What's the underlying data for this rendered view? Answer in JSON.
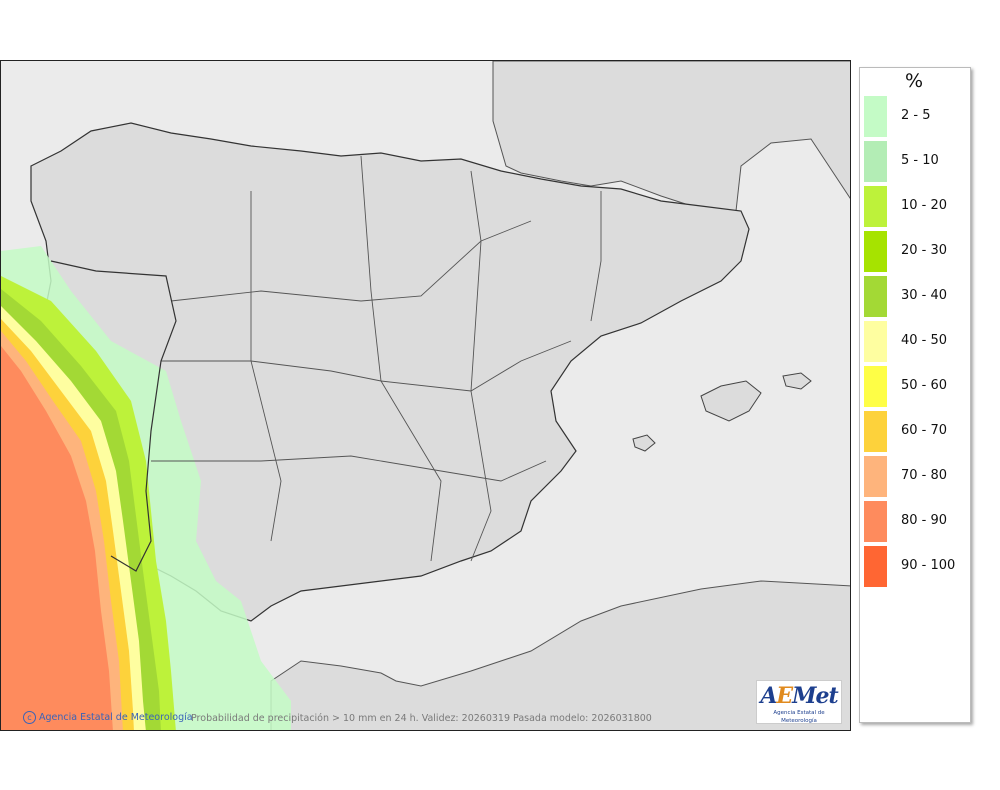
{
  "map": {
    "credit": "Agencia Estatal de Meteorología",
    "info_text": "Probabilidad de precipitación > 10 mm en 24 h. Validez: 20260319 Pasada modelo: 2026031800",
    "logo_text_a": "A",
    "logo_text_b": "E",
    "logo_text_c": "Met",
    "logo_subtitle": "Agencia Estatal de Meteorología",
    "colors": {
      "sea": "#ebebeb",
      "land": "#dcdcdc",
      "border": "#444444"
    }
  },
  "legend": {
    "unit": "%",
    "items": [
      {
        "label": "2 - 5",
        "color": "#c4fbc6"
      },
      {
        "label": "5 - 10",
        "color": "#b3edb5"
      },
      {
        "label": "10 - 20",
        "color": "#bdf23a"
      },
      {
        "label": "20 - 30",
        "color": "#a6e300"
      },
      {
        "label": "30 - 40",
        "color": "#a3d935"
      },
      {
        "label": "40 - 50",
        "color": "#fefea0"
      },
      {
        "label": "50 - 60",
        "color": "#fefe46"
      },
      {
        "label": "60 - 70",
        "color": "#fdd23b"
      },
      {
        "label": "70 - 80",
        "color": "#feb47c"
      },
      {
        "label": "80 - 90",
        "color": "#fe8b5d"
      },
      {
        "label": "90 - 100",
        "color": "#ff6633"
      }
    ]
  }
}
